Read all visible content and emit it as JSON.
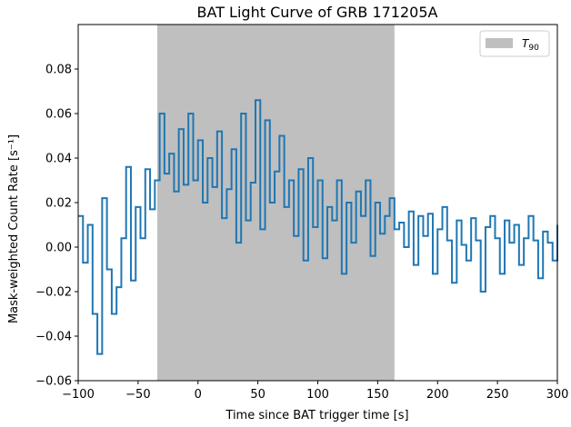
{
  "chart_data": {
    "type": "line",
    "title": "BAT Light Curve of GRB 171205A",
    "xlabel": "Time since BAT trigger time [s]",
    "ylabel": "Mask-weighted Count Rate [s⁻¹]",
    "xlim": [
      -100,
      300
    ],
    "ylim": [
      -0.06,
      0.1
    ],
    "x_ticks": [
      -100,
      -50,
      0,
      50,
      100,
      150,
      200,
      250,
      300
    ],
    "x_tick_labels": [
      "−100",
      "−50",
      "0",
      "50",
      "100",
      "150",
      "200",
      "250",
      "300"
    ],
    "y_ticks": [
      -0.06,
      -0.04,
      -0.02,
      0.0,
      0.02,
      0.04,
      0.06,
      0.08
    ],
    "y_tick_labels": [
      "−0.06",
      "−0.04",
      "−0.02",
      "0.00",
      "0.02",
      "0.04",
      "0.06",
      "0.08"
    ],
    "grid": false,
    "legend_position": "top-right",
    "shaded_region": {
      "label": "T",
      "label_sub": "90",
      "x_start": -34,
      "x_end": 164,
      "color": "#bfbfbf"
    },
    "series": [
      {
        "color": "#1f77b4",
        "x": [
          -100,
          -96,
          -92,
          -88,
          -84,
          -80,
          -76,
          -72,
          -68,
          -64,
          -60,
          -56,
          -52,
          -48,
          -44,
          -40,
          -36,
          -32,
          -28,
          -24,
          -20,
          -16,
          -12,
          -8,
          -4,
          0,
          4,
          8,
          12,
          16,
          20,
          24,
          28,
          32,
          36,
          40,
          44,
          48,
          52,
          56,
          60,
          64,
          68,
          72,
          76,
          80,
          84,
          88,
          92,
          96,
          100,
          104,
          108,
          112,
          116,
          120,
          124,
          128,
          132,
          136,
          140,
          144,
          148,
          152,
          156,
          160,
          164,
          168,
          172,
          176,
          180,
          184,
          188,
          192,
          196,
          200,
          204,
          208,
          212,
          216,
          220,
          224,
          228,
          232,
          236,
          240,
          244,
          248,
          252,
          256,
          260,
          264,
          268,
          272,
          276,
          280,
          284,
          288,
          292,
          296,
          300
        ],
        "y": [
          0.014,
          -0.007,
          0.01,
          -0.03,
          -0.048,
          0.022,
          -0.01,
          -0.03,
          -0.018,
          0.004,
          0.036,
          -0.015,
          0.018,
          0.004,
          0.035,
          0.017,
          0.03,
          0.06,
          0.033,
          0.042,
          0.025,
          0.053,
          0.028,
          0.06,
          0.03,
          0.048,
          0.02,
          0.04,
          0.027,
          0.052,
          0.013,
          0.026,
          0.044,
          0.002,
          0.06,
          0.012,
          0.029,
          0.066,
          0.008,
          0.057,
          0.02,
          0.034,
          0.05,
          0.018,
          0.03,
          0.005,
          0.035,
          -0.006,
          0.04,
          0.009,
          0.03,
          -0.005,
          0.018,
          0.012,
          0.03,
          -0.012,
          0.02,
          0.002,
          0.025,
          0.014,
          0.03,
          -0.004,
          0.02,
          0.006,
          0.014,
          0.022,
          0.008,
          0.011,
          0.0,
          0.016,
          -0.008,
          0.014,
          0.005,
          0.015,
          -0.012,
          0.008,
          0.018,
          0.003,
          -0.016,
          0.012,
          0.001,
          -0.006,
          0.013,
          0.003,
          -0.02,
          0.009,
          0.014,
          0.004,
          -0.012,
          0.012,
          0.002,
          0.01,
          -0.008,
          0.004,
          0.014,
          0.003,
          -0.014,
          0.007,
          0.002,
          -0.006,
          0.01
        ]
      }
    ]
  }
}
